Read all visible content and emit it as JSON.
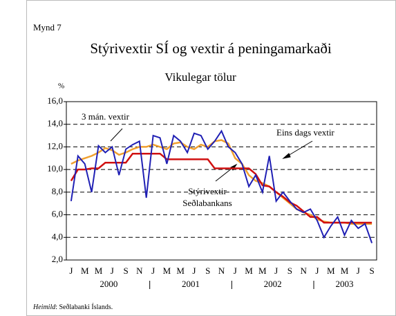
{
  "chart_data": {
    "type": "line",
    "figure_label": "Mynd 7",
    "title": "Stýrivextir SÍ og vextir á peningamarkaði",
    "subtitle": "Vikulegar tölur",
    "y_unit": "%",
    "source_label": "Heimild",
    "source_text": ": Seðlabanki Íslands.",
    "categories": [
      "J",
      null,
      "M",
      null,
      "M",
      null,
      "J",
      null,
      "S",
      null,
      "N",
      null,
      "J",
      null,
      "M",
      null,
      "M",
      null,
      "J",
      null,
      "S",
      null,
      "N",
      null,
      "J",
      null,
      "M",
      null,
      "M",
      null,
      "J",
      null,
      "S",
      null,
      "N",
      null,
      "J",
      null,
      "M",
      null,
      "M",
      null,
      "J",
      null,
      "S"
    ],
    "years": [
      "2000",
      "2001",
      "2002",
      "2003"
    ],
    "series": [
      {
        "name": "Eins dags vextir",
        "color": "#1f1fb4",
        "values": [
          7.2,
          11.2,
          10.5,
          8.0,
          12.1,
          11.5,
          12.0,
          9.5,
          11.8,
          12.2,
          12.5,
          7.5,
          13.0,
          12.8,
          10.5,
          13.0,
          12.5,
          11.5,
          13.2,
          13.0,
          11.8,
          12.5,
          13.4,
          12.0,
          11.5,
          10.5,
          8.5,
          9.5,
          8.0,
          11.2,
          7.2,
          8.0,
          7.2,
          6.5,
          6.2,
          6.5,
          5.5,
          4.0,
          5.0,
          5.8,
          4.2,
          5.5,
          4.8,
          5.2,
          3.5
        ]
      },
      {
        "name": "3 mán. vextir",
        "color": "#f0a030",
        "values": [
          10.5,
          10.8,
          11.0,
          11.2,
          11.5,
          11.9,
          11.7,
          11.3,
          11.5,
          11.8,
          12.0,
          12.0,
          12.2,
          12.0,
          11.8,
          12.3,
          12.4,
          12.0,
          11.8,
          12.2,
          12.0,
          12.5,
          12.6,
          12.3,
          11.0,
          10.5,
          9.5,
          9.0,
          8.8,
          8.5,
          8.0,
          7.5,
          7.0,
          6.5,
          6.2,
          6.0,
          5.6,
          5.4,
          5.3,
          5.3,
          5.3,
          5.2,
          5.2,
          5.2,
          5.2
        ]
      },
      {
        "name": "Stýrivextir Seðlabankans",
        "color": "#d01010",
        "values": [
          9.0,
          10.0,
          10.0,
          10.1,
          10.1,
          10.6,
          10.6,
          10.6,
          10.6,
          11.4,
          11.4,
          11.4,
          11.4,
          11.4,
          10.9,
          10.9,
          10.9,
          10.9,
          10.9,
          10.9,
          10.9,
          10.1,
          10.1,
          10.1,
          10.1,
          10.1,
          10.1,
          9.6,
          8.6,
          8.5,
          8.0,
          7.6,
          7.1,
          6.8,
          6.3,
          5.8,
          5.8,
          5.3,
          5.3,
          5.3,
          5.3,
          5.3,
          5.3,
          5.3,
          5.3
        ]
      }
    ],
    "ylim": [
      2,
      16
    ],
    "yticks": [
      {
        "value": 2,
        "label": "2,0"
      },
      {
        "value": 4,
        "label": "4,0"
      },
      {
        "value": 6,
        "label": "6,0"
      },
      {
        "value": 8,
        "label": "8,0"
      },
      {
        "value": 10,
        "label": "10,0"
      },
      {
        "value": 12,
        "label": "12,0"
      },
      {
        "value": 14,
        "label": "14,0"
      },
      {
        "value": 16,
        "label": "16,0"
      }
    ],
    "grid": true
  }
}
